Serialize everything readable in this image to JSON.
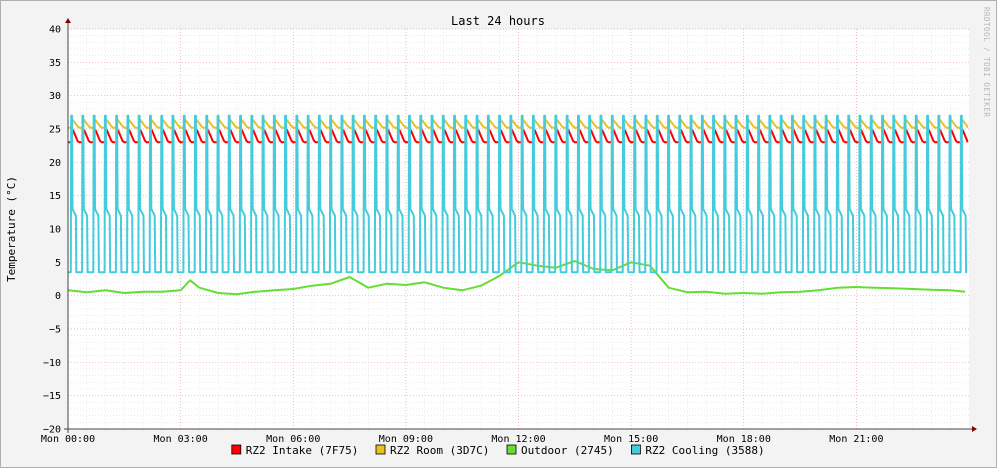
{
  "chart_data": {
    "type": "line",
    "title": "Last 24 hours",
    "ylabel": "Temperature (°C)",
    "xlabel": "",
    "watermark": "RRDTOOL / TOBI OETIKER",
    "ylim": [
      -20,
      40
    ],
    "xlim": [
      0,
      24
    ],
    "grid": true,
    "legend_position": "bottom",
    "yticks": [
      40,
      35,
      30,
      25,
      20,
      15,
      10,
      5,
      0,
      -5,
      -10,
      -15,
      -20
    ],
    "xticks": [
      {
        "value": 0,
        "label": "Mon 00:00"
      },
      {
        "value": 3,
        "label": "Mon 03:00"
      },
      {
        "value": 6,
        "label": "Mon 06:00"
      },
      {
        "value": 9,
        "label": "Mon 09:00"
      },
      {
        "value": 12,
        "label": "Mon 12:00"
      },
      {
        "value": 15,
        "label": "Mon 15:00"
      },
      {
        "value": 18,
        "label": "Mon 18:00"
      },
      {
        "value": 21,
        "label": "Mon 21:00"
      }
    ],
    "series": [
      {
        "name": "RZ2 Intake (7F75)",
        "color": "#ff0000",
        "pattern": {
          "period_hours": 0.3,
          "low": 23.0,
          "high": 24.8
        }
      },
      {
        "name": "RZ2 Room (3D7C)",
        "color": "#e8c020",
        "pattern": {
          "period_hours": 0.3,
          "low": 25.2,
          "high": 26.3
        }
      },
      {
        "name": "Outdoor (2745)",
        "color": "#66dd33",
        "x": [
          0,
          0.5,
          1,
          1.5,
          2,
          2.5,
          3,
          3.25,
          3.5,
          4,
          4.5,
          5,
          5.5,
          6,
          6.5,
          7,
          7.5,
          8,
          8.5,
          9,
          9.5,
          10,
          10.5,
          11,
          11.5,
          12,
          12.5,
          13,
          13.5,
          14,
          14.5,
          15,
          15.5,
          16,
          16.5,
          17,
          17.5,
          18,
          18.5,
          19,
          19.5,
          20,
          20.5,
          21,
          21.5,
          22,
          22.5,
          23,
          23.5,
          23.9
        ],
        "y": [
          0.8,
          0.5,
          0.8,
          0.4,
          0.6,
          0.6,
          0.8,
          2.3,
          1.2,
          0.4,
          0.2,
          0.6,
          0.8,
          1.0,
          1.5,
          1.8,
          2.8,
          1.2,
          1.8,
          1.6,
          2.0,
          1.2,
          0.8,
          1.5,
          3.0,
          5.0,
          4.5,
          4.2,
          5.2,
          4.0,
          3.8,
          5.0,
          4.5,
          1.2,
          0.5,
          0.6,
          0.3,
          0.4,
          0.3,
          0.5,
          0.6,
          0.8,
          1.2,
          1.3,
          1.2,
          1.1,
          1.0,
          0.9,
          0.8,
          0.6
        ]
      },
      {
        "name": "RZ2 Cooling (3588)",
        "color": "#44ccdd",
        "pattern": {
          "period_hours": 0.3,
          "low": 3.5,
          "mid": 13.0,
          "high": 27.0
        }
      }
    ]
  }
}
